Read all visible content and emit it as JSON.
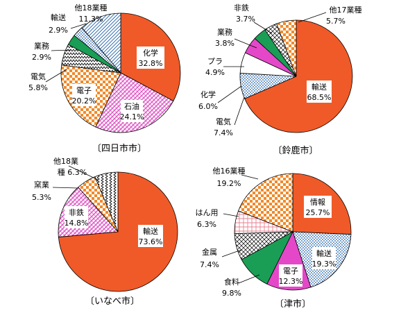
{
  "chart_data": [
    {
      "type": "pie",
      "title": "〔四日市市〕",
      "slices": [
        {
          "name": "化学",
          "value": 32.8,
          "pattern": "solid"
        },
        {
          "name": "石油",
          "value": 24.1,
          "pattern": "pink-hatch"
        },
        {
          "name": "電子",
          "value": 20.2,
          "pattern": "orange-check"
        },
        {
          "name": "電気",
          "value": 5.8,
          "pattern": "zigzag"
        },
        {
          "name": "業務",
          "value": 2.9,
          "pattern": "green"
        },
        {
          "name": "輸送",
          "value": 2.9,
          "pattern": "blue-dot"
        },
        {
          "name": "他18業種",
          "value": 11.3,
          "pattern": "blue-diag"
        }
      ]
    },
    {
      "type": "pie",
      "title": "〔鈴鹿市〕",
      "slices": [
        {
          "name": "輸送",
          "value": 68.5,
          "pattern": "solid"
        },
        {
          "name": "電気",
          "value": 7.4,
          "pattern": "blue-dot"
        },
        {
          "name": "化学",
          "value": 6.0,
          "pattern": "white"
        },
        {
          "name": "プラ",
          "value": 4.9,
          "pattern": "magenta"
        },
        {
          "name": "業務",
          "value": 3.8,
          "pattern": "green"
        },
        {
          "name": "非鉄",
          "value": 3.7,
          "pattern": "crosshatch"
        },
        {
          "name": "他17業種",
          "value": 5.7,
          "pattern": "orange-check"
        }
      ]
    },
    {
      "type": "pie",
      "title": "〔いなべ市〕",
      "slices": [
        {
          "name": "輸送",
          "value": 73.6,
          "pattern": "solid"
        },
        {
          "name": "非鉄",
          "value": 14.8,
          "pattern": "pink-hatch"
        },
        {
          "name": "窯業",
          "value": 5.3,
          "pattern": "orange-check"
        },
        {
          "name": "他18業種",
          "value": 6.3,
          "pattern": "vertical-zigzag"
        }
      ]
    },
    {
      "type": "pie",
      "title": "〔津市〕",
      "slices": [
        {
          "name": "情報",
          "value": 25.7,
          "pattern": "solid"
        },
        {
          "name": "輸送",
          "value": 19.3,
          "pattern": "blue-dot"
        },
        {
          "name": "電子",
          "value": 12.3,
          "pattern": "magenta"
        },
        {
          "name": "食料",
          "value": 9.8,
          "pattern": "green"
        },
        {
          "name": "金属",
          "value": 7.4,
          "pattern": "crosshatch"
        },
        {
          "name": "はん用",
          "value": 6.3,
          "pattern": "pink-check"
        },
        {
          "name": "他16業種",
          "value": 19.2,
          "pattern": "orange-check"
        }
      ]
    }
  ],
  "labels": {
    "yokkaichi": {
      "kagaku": {
        "name": "化学",
        "value": "32.8%"
      },
      "sekiyu": {
        "name": "石油",
        "value": "24.1%"
      },
      "denshi": {
        "name": "電子",
        "value": "20.2%"
      },
      "denki": {
        "name": "電気",
        "value": "5.8%"
      },
      "gyomu": {
        "name": "業務",
        "value": "2.9%"
      },
      "yuso": {
        "name": "輸送",
        "value": "2.9%"
      },
      "other": {
        "name": "他18業種",
        "value": "11.3%"
      }
    },
    "suzuka": {
      "yuso": {
        "name": "輸送",
        "value": "68.5%"
      },
      "denki": {
        "name": "電気",
        "value": "7.4%"
      },
      "kagaku": {
        "name": "化学",
        "value": "6.0%"
      },
      "pura": {
        "name": "プラ",
        "value": "4.9%"
      },
      "gyomu": {
        "name": "業務",
        "value": "3.8%"
      },
      "hitetsu": {
        "name": "非鉄",
        "value": "3.7%"
      },
      "other": {
        "name": "他17業種",
        "value": "5.7%"
      }
    },
    "inabe": {
      "yuso": {
        "name": "輸送",
        "value": "73.6%"
      },
      "hitetsu": {
        "name": "非鉄",
        "value": "14.8%"
      },
      "yogyo": {
        "name": "窯業",
        "value": "5.3%"
      },
      "other_l1": "他18業",
      "other_l2": "種 6.3%"
    },
    "tsu": {
      "joho": {
        "name": "情報",
        "value": "25.7%"
      },
      "yuso": {
        "name": "輸送",
        "value": "19.3%"
      },
      "denshi": {
        "name": "電子",
        "value": "12.3%"
      },
      "shokuryo": {
        "name": "食料",
        "value": "9.8%"
      },
      "kinzoku": {
        "name": "金属",
        "value": "7.4%"
      },
      "hanyo": {
        "name": "はん用",
        "value": "6.3%"
      },
      "other": {
        "name": "他16業種",
        "value": "19.2%"
      }
    }
  },
  "colors": {
    "accent": "#f05a28",
    "pink": "#e060c8",
    "magenta": "#e448c8",
    "green": "#1a9e56",
    "blue": "#1f5fa8",
    "orange": "#f08a2a"
  }
}
